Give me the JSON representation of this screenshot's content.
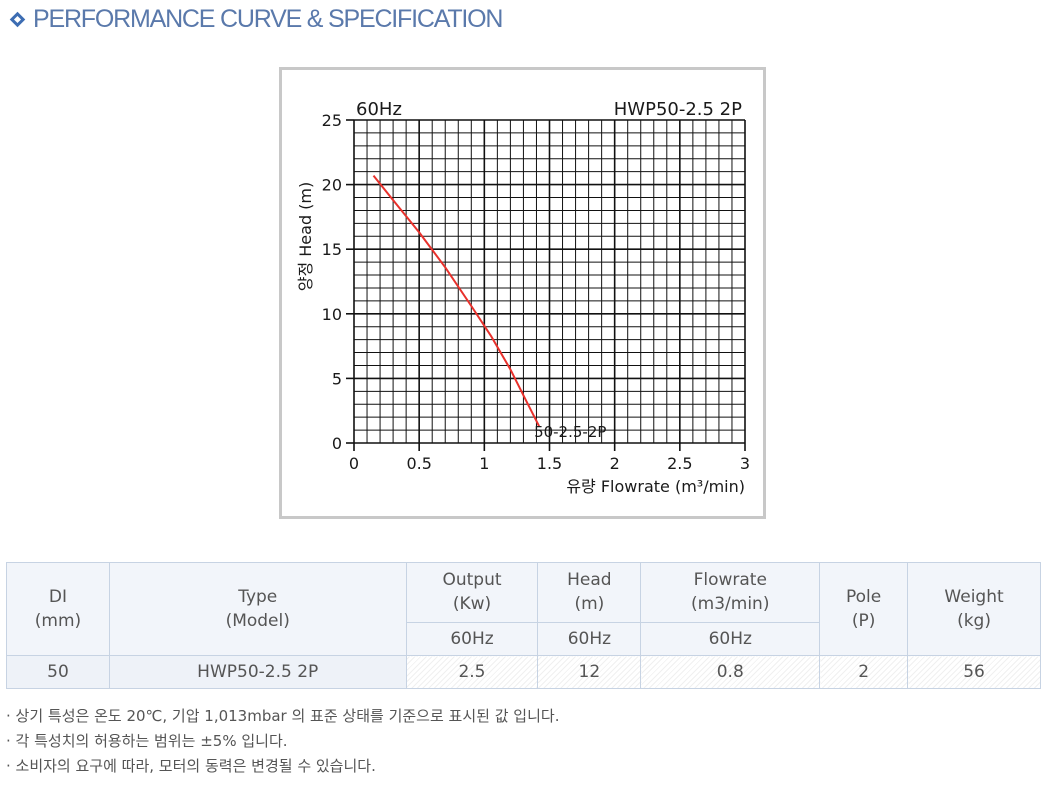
{
  "header": {
    "title": "PERFORMANCE CURVE & SPECIFICATION"
  },
  "chart_data": {
    "type": "line",
    "frequency_label": "60Hz",
    "model_label": "HWP50-2.5 2P",
    "xlabel": "유량 Flowrate (m³/min)",
    "ylabel": "양정 Head (m)",
    "xlim": [
      0,
      3
    ],
    "ylim": [
      0,
      25
    ],
    "x_ticks": [
      "0",
      "0.5",
      "1",
      "1.5",
      "2",
      "2.5",
      "3"
    ],
    "y_ticks": [
      "0",
      "5",
      "10",
      "15",
      "20",
      "25"
    ],
    "grid": true,
    "series": [
      {
        "name": "50-2.5-2P",
        "color": "#e8312c",
        "x": [
          0.15,
          0.3,
          0.5,
          0.7,
          0.9,
          1.05,
          1.2,
          1.32,
          1.42
        ],
        "y": [
          20.7,
          18.8,
          16.3,
          13.6,
          10.6,
          8.3,
          5.7,
          3.3,
          1.3
        ]
      }
    ]
  },
  "table": {
    "headers": {
      "di": "DI",
      "di_unit": "(mm)",
      "type": "Type",
      "type_unit": "(Model)",
      "output": "Output",
      "output_unit": "(Kw)",
      "head": "Head",
      "head_unit": "(m)",
      "flowrate": "Flowrate",
      "flowrate_unit": "(m3/min)",
      "pole": "Pole",
      "pole_unit": "(P)",
      "weight": "Weight",
      "weight_unit": "(kg)",
      "freq_output": "60Hz",
      "freq_head": "60Hz",
      "freq_flowrate": "60Hz"
    },
    "row": {
      "di": "50",
      "type": "HWP50-2.5 2P",
      "output": "2.5",
      "head": "12",
      "flowrate": "0.8",
      "pole": "2",
      "weight": "56"
    }
  },
  "notes": [
    "· 상기 특성은 온도 20℃, 기압 1,013mbar 의 표준 상태를 기준으로 표시된 값 입니다.",
    "· 각 특성치의 허용하는 범위는 ±5% 입니다.",
    "· 소비자의 요구에 따라, 모터의 동력은 변경될 수 있습니다."
  ]
}
